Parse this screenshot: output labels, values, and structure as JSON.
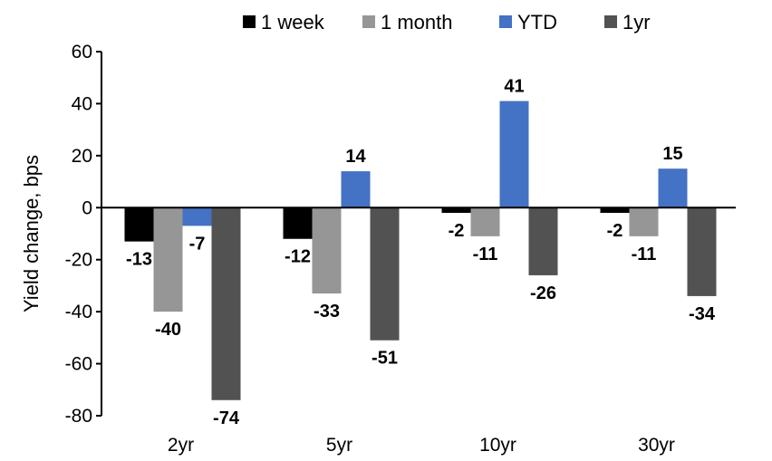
{
  "chart_data": {
    "type": "bar",
    "title": "",
    "xlabel": "",
    "ylabel": "Yield change, bps",
    "ylim": [
      -80,
      60
    ],
    "yticks": [
      60,
      40,
      20,
      0,
      -20,
      -40,
      -60,
      -80
    ],
    "categories": [
      "2yr",
      "5yr",
      "10yr",
      "30yr"
    ],
    "legend_position": "top",
    "grid": false,
    "series": [
      {
        "name": "1 week",
        "color": "#000000",
        "values": [
          -13,
          -12,
          -2,
          -2
        ]
      },
      {
        "name": "1 month",
        "color": "#969696",
        "values": [
          -40,
          -33,
          -11,
          -11
        ]
      },
      {
        "name": "YTD",
        "color": "#4472C4",
        "values": [
          -7,
          14,
          41,
          15
        ]
      },
      {
        "name": "1yr",
        "color": "#525252",
        "values": [
          -74,
          -51,
          -26,
          -34
        ]
      }
    ]
  }
}
